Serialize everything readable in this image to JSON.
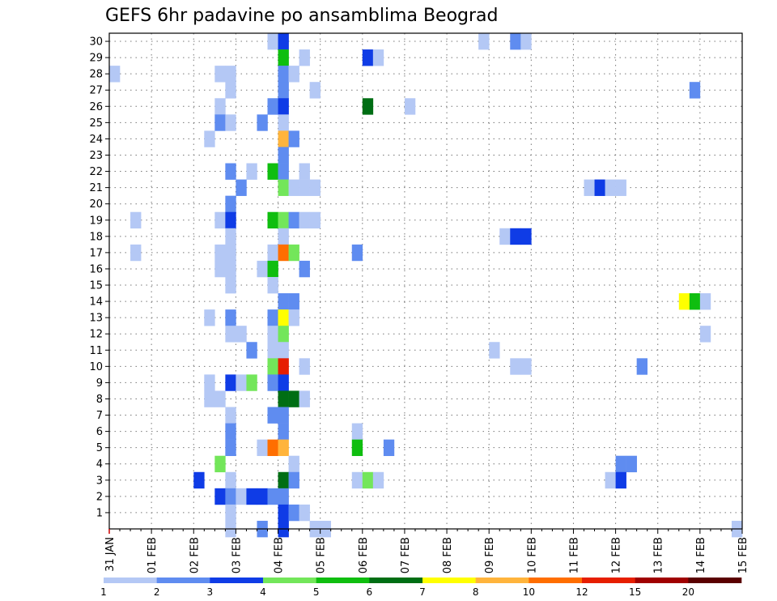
{
  "chart_data": {
    "type": "heatmap",
    "title": "GEFS 6hr padavine po ansamblima Beograd",
    "xlabel": "",
    "ylabel": "",
    "x_ticks": [
      "31 JAN",
      "01 FEB",
      "02 FEB",
      "03 FEB",
      "04 FEB",
      "05 FEB",
      "06 FEB",
      "07 FEB",
      "08 FEB",
      "09 FEB",
      "10 FEB",
      "11 FEB",
      "12 FEB",
      "13 FEB",
      "14 FEB",
      "15 FEB"
    ],
    "x_range_days": [
      0,
      15
    ],
    "steps_per_day": 4,
    "y_range_members": [
      1,
      30
    ],
    "y_ticks": [
      1,
      2,
      3,
      4,
      5,
      6,
      7,
      8,
      9,
      10,
      11,
      12,
      13,
      14,
      15,
      16,
      17,
      18,
      19,
      20,
      21,
      22,
      23,
      24,
      25,
      26,
      27,
      28,
      29,
      30
    ],
    "grid": "dotted",
    "legend": {
      "placement": "bottom",
      "labels": [
        "1",
        "2",
        "3",
        "4",
        "5",
        "6",
        "7",
        "8",
        "10",
        "12",
        "15",
        "20"
      ],
      "colors": [
        "#b4c8f5",
        "#5f8cf0",
        "#0f3ce6",
        "#73e65a",
        "#0fbe0f",
        "#006e14",
        "#ffff00",
        "#ffb43c",
        "#ff6e00",
        "#e61e00",
        "#a00000",
        "#5a0000"
      ]
    },
    "cells": [
      [
        30,
        3.75,
        0
      ],
      [
        30,
        4.0,
        2
      ],
      [
        30,
        8.75,
        0
      ],
      [
        30,
        9.5,
        1
      ],
      [
        30,
        9.75,
        0
      ],
      [
        29,
        4.0,
        4
      ],
      [
        29,
        4.5,
        0
      ],
      [
        29,
        6.0,
        2
      ],
      [
        29,
        6.25,
        0
      ],
      [
        28,
        0.0,
        0
      ],
      [
        28,
        2.5,
        0
      ],
      [
        28,
        2.75,
        0
      ],
      [
        28,
        4.0,
        1
      ],
      [
        28,
        4.25,
        0
      ],
      [
        27,
        2.75,
        0
      ],
      [
        27,
        4.0,
        1
      ],
      [
        27,
        4.75,
        0
      ],
      [
        27,
        13.75,
        1
      ],
      [
        26,
        2.5,
        0
      ],
      [
        26,
        3.75,
        1
      ],
      [
        26,
        4.0,
        2
      ],
      [
        26,
        6.0,
        5
      ],
      [
        26,
        7.0,
        0
      ],
      [
        25,
        2.5,
        1
      ],
      [
        25,
        2.75,
        0
      ],
      [
        25,
        3.5,
        1
      ],
      [
        25,
        4.0,
        0
      ],
      [
        24,
        2.25,
        0
      ],
      [
        24,
        4.0,
        7
      ],
      [
        24,
        4.25,
        1
      ],
      [
        23,
        4.0,
        1
      ],
      [
        22,
        2.75,
        1
      ],
      [
        22,
        3.25,
        0
      ],
      [
        22,
        3.75,
        4
      ],
      [
        22,
        4.0,
        1
      ],
      [
        22,
        4.5,
        0
      ],
      [
        21,
        3.0,
        1
      ],
      [
        21,
        4.0,
        3
      ],
      [
        21,
        4.25,
        0
      ],
      [
        21,
        4.5,
        0
      ],
      [
        21,
        4.75,
        0
      ],
      [
        21,
        11.25,
        0
      ],
      [
        21,
        11.5,
        2
      ],
      [
        21,
        11.75,
        0
      ],
      [
        21,
        12.0,
        0
      ],
      [
        20,
        2.75,
        1
      ],
      [
        19,
        0.5,
        0
      ],
      [
        19,
        2.5,
        0
      ],
      [
        19,
        2.75,
        2
      ],
      [
        19,
        3.75,
        4
      ],
      [
        19,
        4.0,
        3
      ],
      [
        19,
        4.25,
        1
      ],
      [
        19,
        4.5,
        0
      ],
      [
        19,
        4.75,
        0
      ],
      [
        18,
        2.75,
        0
      ],
      [
        18,
        4.0,
        0
      ],
      [
        18,
        9.25,
        0
      ],
      [
        18,
        9.5,
        2
      ],
      [
        18,
        9.75,
        2
      ],
      [
        17,
        0.5,
        0
      ],
      [
        17,
        2.5,
        0
      ],
      [
        17,
        2.75,
        0
      ],
      [
        17,
        3.75,
        0
      ],
      [
        17,
        4.0,
        8
      ],
      [
        17,
        4.25,
        3
      ],
      [
        17,
        5.75,
        1
      ],
      [
        16,
        2.5,
        0
      ],
      [
        16,
        2.75,
        0
      ],
      [
        16,
        3.5,
        0
      ],
      [
        16,
        3.75,
        4
      ],
      [
        16,
        4.5,
        1
      ],
      [
        15,
        2.75,
        0
      ],
      [
        15,
        3.75,
        0
      ],
      [
        14,
        4.0,
        1
      ],
      [
        14,
        4.25,
        1
      ],
      [
        14,
        13.5,
        6
      ],
      [
        14,
        13.75,
        4
      ],
      [
        14,
        14.0,
        0
      ],
      [
        13,
        2.25,
        0
      ],
      [
        13,
        2.75,
        1
      ],
      [
        13,
        3.75,
        1
      ],
      [
        13,
        4.0,
        6
      ],
      [
        13,
        4.25,
        0
      ],
      [
        12,
        2.75,
        0
      ],
      [
        12,
        3.0,
        0
      ],
      [
        12,
        3.75,
        0
      ],
      [
        12,
        4.0,
        3
      ],
      [
        12,
        14.0,
        0
      ],
      [
        11,
        3.25,
        1
      ],
      [
        11,
        3.75,
        0
      ],
      [
        11,
        4.0,
        0
      ],
      [
        11,
        9.0,
        0
      ],
      [
        10,
        3.75,
        3
      ],
      [
        10,
        4.0,
        9
      ],
      [
        10,
        4.5,
        0
      ],
      [
        10,
        9.5,
        0
      ],
      [
        10,
        9.75,
        0
      ],
      [
        10,
        12.5,
        1
      ],
      [
        9,
        2.25,
        0
      ],
      [
        9,
        2.75,
        2
      ],
      [
        9,
        3.0,
        0
      ],
      [
        9,
        3.25,
        3
      ],
      [
        9,
        3.75,
        1
      ],
      [
        9,
        4.0,
        2
      ],
      [
        8,
        2.25,
        0
      ],
      [
        8,
        2.5,
        0
      ],
      [
        8,
        4.0,
        5
      ],
      [
        8,
        4.25,
        5
      ],
      [
        8,
        4.5,
        0
      ],
      [
        7,
        2.75,
        0
      ],
      [
        7,
        3.75,
        1
      ],
      [
        7,
        4.0,
        1
      ],
      [
        6,
        2.75,
        1
      ],
      [
        6,
        4.0,
        1
      ],
      [
        6,
        5.75,
        0
      ],
      [
        5,
        2.75,
        1
      ],
      [
        5,
        3.5,
        0
      ],
      [
        5,
        3.75,
        8
      ],
      [
        5,
        4.0,
        7
      ],
      [
        5,
        5.75,
        4
      ],
      [
        5,
        6.5,
        1
      ],
      [
        4,
        2.5,
        3
      ],
      [
        4,
        4.25,
        0
      ],
      [
        4,
        12.0,
        1
      ],
      [
        4,
        12.25,
        1
      ],
      [
        3,
        2.0,
        2
      ],
      [
        3,
        2.75,
        0
      ],
      [
        3,
        4.0,
        5
      ],
      [
        3,
        4.25,
        1
      ],
      [
        3,
        5.75,
        0
      ],
      [
        3,
        6.0,
        3
      ],
      [
        3,
        6.25,
        0
      ],
      [
        3,
        11.75,
        0
      ],
      [
        3,
        12.0,
        2
      ],
      [
        2,
        2.5,
        2
      ],
      [
        2,
        2.75,
        1
      ],
      [
        2,
        3.0,
        0
      ],
      [
        2,
        3.25,
        2
      ],
      [
        2,
        3.5,
        2
      ],
      [
        2,
        3.75,
        1
      ],
      [
        2,
        4.0,
        1
      ],
      [
        1,
        2.75,
        0
      ],
      [
        1,
        4.0,
        2
      ],
      [
        1,
        4.25,
        1
      ],
      [
        1,
        4.5,
        0
      ],
      [
        0,
        2.75,
        0
      ],
      [
        0,
        3.5,
        1
      ],
      [
        0,
        4.0,
        2
      ],
      [
        0,
        4.75,
        0
      ],
      [
        0,
        5.0,
        0
      ],
      [
        0,
        14.75,
        0
      ]
    ]
  }
}
